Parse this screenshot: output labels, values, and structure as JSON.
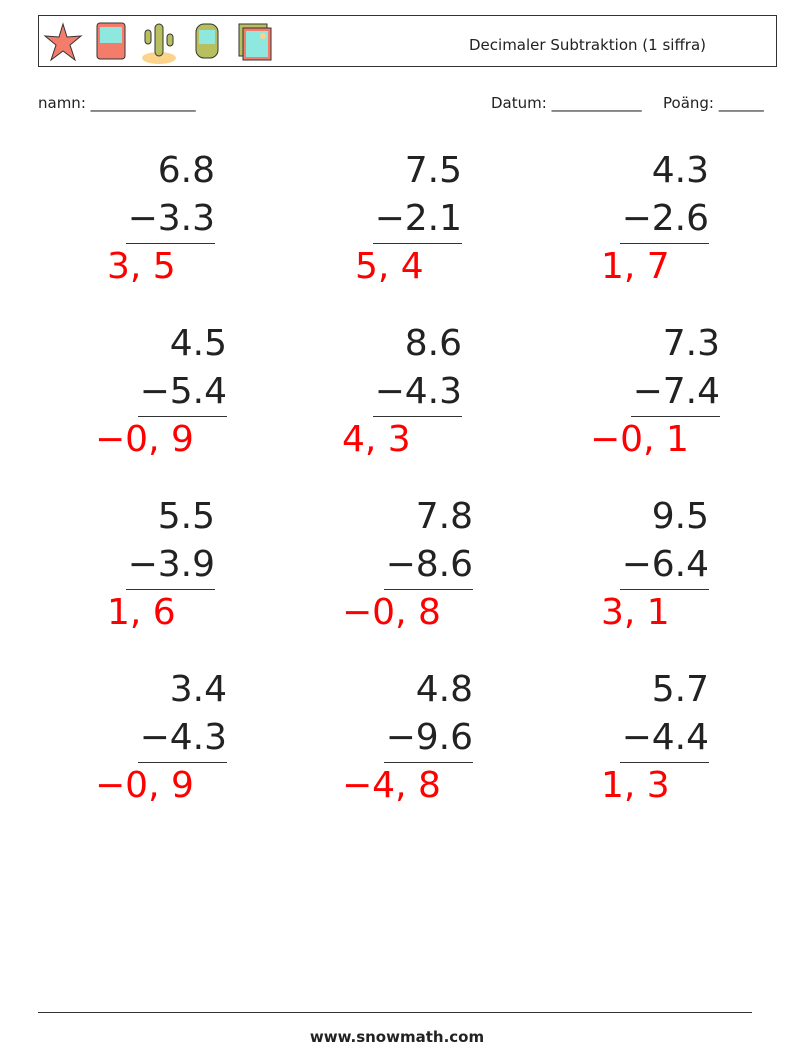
{
  "header": {
    "title": "Decimaler Subtraktion (1 siffra)",
    "icons": [
      "starfish-icon",
      "bus-icon",
      "cactus-icon",
      "train-icon",
      "picture-icon"
    ]
  },
  "meta": {
    "name_label": "namn: ______________",
    "date_label": "Datum: ____________",
    "score_label": "Poäng: ______"
  },
  "problems": [
    {
      "a": "6.8",
      "b": "−3.3",
      "answer": "3, 5"
    },
    {
      "a": "7.5",
      "b": "−2.1",
      "answer": "5, 4"
    },
    {
      "a": "4.3",
      "b": "−2.6",
      "answer": "1, 7"
    },
    {
      "a": "4.5",
      "b": "−5.4",
      "answer": "−0, 9"
    },
    {
      "a": "8.6",
      "b": "−4.3",
      "answer": "4, 3"
    },
    {
      "a": "7.3",
      "b": "−7.4",
      "answer": "−0, 1"
    },
    {
      "a": "5.5",
      "b": "−3.9",
      "answer": "1, 6"
    },
    {
      "a": "7.8",
      "b": "−8.6",
      "answer": "−0, 8"
    },
    {
      "a": "9.5",
      "b": "−6.4",
      "answer": "3, 1"
    },
    {
      "a": "3.4",
      "b": "−4.3",
      "answer": "−0, 9"
    },
    {
      "a": "4.8",
      "b": "−9.6",
      "answer": "−4, 8"
    },
    {
      "a": "5.7",
      "b": "−4.4",
      "answer": "1, 3"
    }
  ],
  "answer_color": "#ff0000",
  "footer": {
    "url": "www.snowmath.com"
  }
}
